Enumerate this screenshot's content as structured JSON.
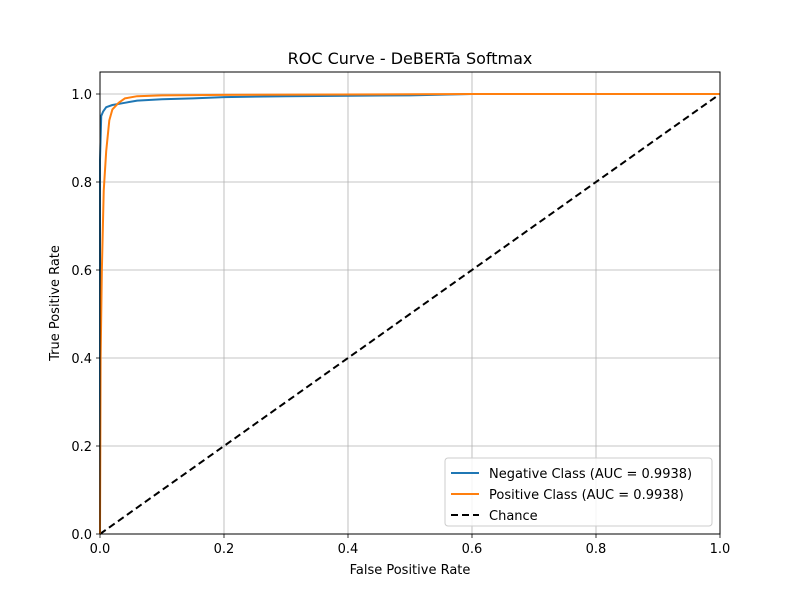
{
  "chart_data": {
    "type": "line",
    "title": "ROC Curve - DeBERTa Softmax",
    "xlabel": "False Positive Rate",
    "ylabel": "True Positive Rate",
    "xlim": [
      0,
      1
    ],
    "ylim": [
      0,
      1.05
    ],
    "x_ticks": [
      0,
      0.2,
      0.4,
      0.6,
      0.8,
      1
    ],
    "x_tick_labels": [
      "0.0",
      "0.2",
      "0.4",
      "0.6",
      "0.8",
      "1.0"
    ],
    "y_ticks": [
      0,
      0.2,
      0.4,
      0.6,
      0.8,
      1
    ],
    "y_tick_labels": [
      "0.0",
      "0.2",
      "0.4",
      "0.6",
      "0.8",
      "1.0"
    ],
    "grid": true,
    "legend_position": "lower-right",
    "series": [
      {
        "name": "Negative Class (AUC = 0.9938)",
        "color": "#1f77b4",
        "style": "solid",
        "x": [
          0,
          0,
          0.002,
          0.005,
          0.01,
          0.02,
          0.04,
          0.06,
          0.1,
          0.15,
          0.2,
          0.3,
          0.5,
          0.6,
          1.0
        ],
        "y": [
          0,
          0.85,
          0.95,
          0.96,
          0.97,
          0.975,
          0.98,
          0.985,
          0.988,
          0.99,
          0.993,
          0.995,
          0.997,
          1.0,
          1.0
        ]
      },
      {
        "name": "Positive Class (AUC = 0.9938)",
        "color": "#ff7f0e",
        "style": "solid",
        "x": [
          0,
          0.001,
          0.003,
          0.006,
          0.01,
          0.015,
          0.02,
          0.03,
          0.04,
          0.06,
          0.1,
          0.2,
          0.6,
          1.0
        ],
        "y": [
          0,
          0.4,
          0.6,
          0.78,
          0.87,
          0.94,
          0.965,
          0.98,
          0.99,
          0.995,
          0.997,
          0.998,
          1.0,
          1.0
        ]
      },
      {
        "name": "Chance",
        "color": "#000000",
        "style": "dashed",
        "x": [
          0,
          1
        ],
        "y": [
          0,
          1
        ]
      }
    ]
  }
}
